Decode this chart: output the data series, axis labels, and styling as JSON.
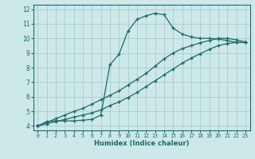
{
  "xlabel": "Humidex (Indice chaleur)",
  "ylabel": "",
  "xlim": [
    -0.5,
    23.5
  ],
  "ylim": [
    3.7,
    12.3
  ],
  "xticks": [
    0,
    1,
    2,
    3,
    4,
    5,
    6,
    7,
    8,
    9,
    10,
    11,
    12,
    13,
    14,
    15,
    16,
    17,
    18,
    19,
    20,
    21,
    22,
    23
  ],
  "yticks": [
    4,
    5,
    6,
    7,
    8,
    9,
    10,
    11,
    12
  ],
  "bg_color": "#cce8e8",
  "line_color": "#1a6b6b",
  "grid_color": "#aacccc",
  "line1_x": [
    0,
    1,
    2,
    3,
    4,
    5,
    6,
    7,
    8,
    9,
    10,
    11,
    12,
    13,
    14,
    15,
    16,
    17,
    18,
    19,
    20,
    21,
    22,
    23
  ],
  "line1_y": [
    4.0,
    4.3,
    4.35,
    4.35,
    4.35,
    4.4,
    4.45,
    4.75,
    8.2,
    8.9,
    10.5,
    11.3,
    11.55,
    11.72,
    11.62,
    10.7,
    10.3,
    10.1,
    10.0,
    10.0,
    9.95,
    9.85,
    9.72,
    9.72
  ],
  "line2_x": [
    0,
    1,
    2,
    3,
    4,
    5,
    6,
    7,
    8,
    9,
    10,
    11,
    12,
    13,
    14,
    15,
    16,
    17,
    18,
    19,
    20,
    21,
    22,
    23
  ],
  "line2_y": [
    4.0,
    4.25,
    4.5,
    4.75,
    5.0,
    5.2,
    5.5,
    5.8,
    6.1,
    6.4,
    6.8,
    7.2,
    7.6,
    8.1,
    8.6,
    9.0,
    9.3,
    9.5,
    9.7,
    9.85,
    10.0,
    10.0,
    9.9,
    9.75
  ],
  "line3_x": [
    0,
    1,
    2,
    3,
    4,
    5,
    6,
    7,
    8,
    9,
    10,
    11,
    12,
    13,
    14,
    15,
    16,
    17,
    18,
    19,
    20,
    21,
    22,
    23
  ],
  "line3_y": [
    4.0,
    4.15,
    4.3,
    4.45,
    4.6,
    4.75,
    4.9,
    5.1,
    5.4,
    5.65,
    5.95,
    6.3,
    6.7,
    7.1,
    7.5,
    7.9,
    8.3,
    8.65,
    8.95,
    9.25,
    9.5,
    9.65,
    9.72,
    9.72
  ]
}
